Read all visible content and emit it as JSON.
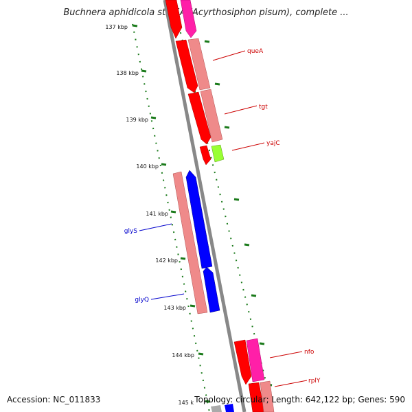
{
  "title": "Buchnera aphidicola str. 5A (Acyrthosiphon pisum), complete ...",
  "ticks": [
    "137 kbp",
    "138 kbp",
    "139 kbp",
    "140 kbp",
    "141 kbp",
    "142 kbp",
    "143 kbp",
    "144 kbp",
    "145 k"
  ],
  "genes": [
    {
      "name": "queA",
      "color": "#cc0000"
    },
    {
      "name": "tgt",
      "color": "#cc0000"
    },
    {
      "name": "yajC",
      "color": "#cc0000"
    },
    {
      "name": "glyS",
      "color": "#0000cc"
    },
    {
      "name": "glyQ",
      "color": "#0000cc"
    },
    {
      "name": "nfo",
      "color": "#cc0000"
    },
    {
      "name": "rplY",
      "color": "#cc0000"
    }
  ],
  "footer": {
    "accession": "Accession: NC_011833",
    "topology": "Topology: circular; Length: 642,122 bp; Genes: 590"
  },
  "colors": {
    "forward_cds": "#ff0000",
    "forward_cds_pale": "#ef8a8a",
    "reverse_cds": "#0000ff",
    "magenta_cds": "#ff1fa8",
    "green_cds": "#99ff33",
    "backbone": "#888888",
    "tick_marks": "#1a7a1a"
  }
}
